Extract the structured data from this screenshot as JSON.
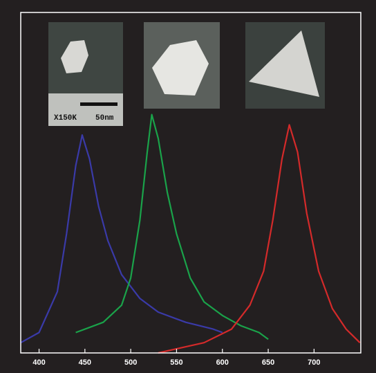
{
  "chart_data": {
    "type": "line",
    "xlim": [
      380,
      751
    ],
    "ylim": [
      0,
      1
    ],
    "xticks": [
      400,
      450,
      500,
      550,
      600,
      650,
      700
    ],
    "series": [
      {
        "color": "#3a3aa8",
        "x": [
          380,
          400,
          420,
          430,
          440,
          447,
          455,
          465,
          475,
          490,
          510,
          530,
          560,
          590,
          600
        ],
        "values": [
          0.03,
          0.06,
          0.18,
          0.35,
          0.55,
          0.64,
          0.57,
          0.43,
          0.33,
          0.23,
          0.16,
          0.12,
          0.09,
          0.07,
          0.06
        ]
      },
      {
        "color": "#1aa34a",
        "x": [
          440,
          470,
          490,
          500,
          510,
          518,
          523,
          530,
          540,
          550,
          565,
          580,
          600,
          620,
          640,
          650
        ],
        "values": [
          0.06,
          0.09,
          0.14,
          0.22,
          0.39,
          0.59,
          0.7,
          0.63,
          0.47,
          0.35,
          0.22,
          0.15,
          0.11,
          0.08,
          0.06,
          0.04
        ]
      },
      {
        "color": "#d42a2a",
        "x": [
          530,
          580,
          610,
          630,
          645,
          655,
          665,
          673,
          682,
          692,
          705,
          720,
          735,
          750
        ],
        "values": [
          0.0,
          0.03,
          0.07,
          0.14,
          0.24,
          0.39,
          0.57,
          0.67,
          0.59,
          0.41,
          0.24,
          0.13,
          0.07,
          0.03
        ]
      }
    ]
  },
  "inset_labels": [
    "X150K",
    "50nm"
  ]
}
